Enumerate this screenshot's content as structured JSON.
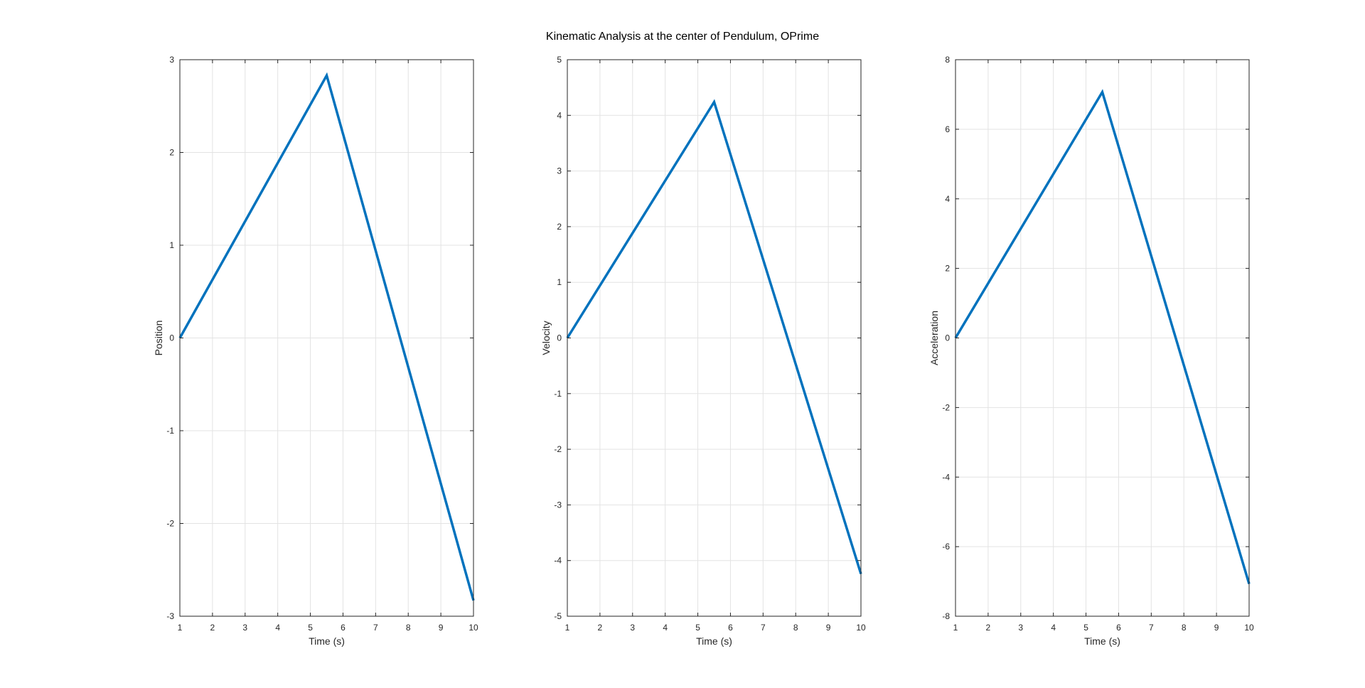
{
  "figure": {
    "title": "Kinematic Analysis at the center of Pendulum, OPrime"
  },
  "colors": {
    "line": "#0072BD",
    "grid": "#e3e3e3",
    "axis": "#262626"
  },
  "chart_data": [
    {
      "type": "line",
      "title": "",
      "xlabel": "Time (s)",
      "ylabel": "Position",
      "xlim": [
        1,
        10
      ],
      "ylim": [
        -3,
        3
      ],
      "xticks": [
        1,
        2,
        3,
        4,
        5,
        6,
        7,
        8,
        9,
        10
      ],
      "yticks": [
        -3,
        -2,
        -1,
        0,
        1,
        2,
        3
      ],
      "grid": true,
      "series": [
        {
          "x": [
            1,
            5.5,
            10
          ],
          "y": [
            0,
            2.83,
            -2.83
          ]
        }
      ]
    },
    {
      "type": "line",
      "title": "",
      "xlabel": "Time (s)",
      "ylabel": "Velocity",
      "xlim": [
        1,
        10
      ],
      "ylim": [
        -5,
        5
      ],
      "xticks": [
        1,
        2,
        3,
        4,
        5,
        6,
        7,
        8,
        9,
        10
      ],
      "yticks": [
        -5,
        -4,
        -3,
        -2,
        -1,
        0,
        1,
        2,
        3,
        4,
        5
      ],
      "grid": true,
      "series": [
        {
          "x": [
            1,
            5.5,
            10
          ],
          "y": [
            0,
            4.24,
            -4.24
          ]
        }
      ]
    },
    {
      "type": "line",
      "title": "",
      "xlabel": "Time (s)",
      "ylabel": "Acceleration",
      "xlim": [
        1,
        10
      ],
      "ylim": [
        -8,
        8
      ],
      "xticks": [
        1,
        2,
        3,
        4,
        5,
        6,
        7,
        8,
        9,
        10
      ],
      "yticks": [
        -8,
        -6,
        -4,
        -2,
        0,
        2,
        4,
        6,
        8
      ],
      "grid": true,
      "series": [
        {
          "x": [
            1,
            5.5,
            10
          ],
          "y": [
            0,
            7.07,
            -7.07
          ]
        }
      ]
    }
  ]
}
